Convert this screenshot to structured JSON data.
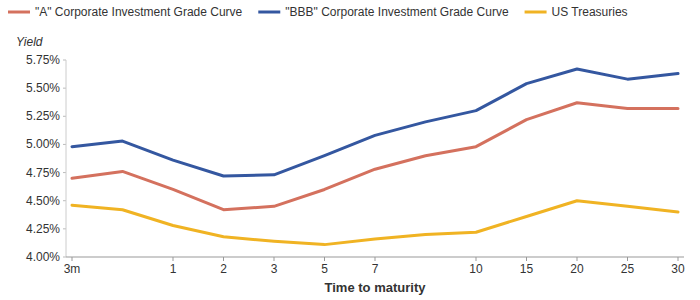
{
  "chart_data": {
    "type": "line",
    "x_label": "Time to maturity",
    "y_label": "Yield",
    "categories": [
      "3m",
      null,
      "1",
      "2",
      "3",
      "5",
      "7",
      null,
      "10",
      "15",
      "20",
      "25",
      "30"
    ],
    "series": [
      {
        "name": "\"A\" Corporate Investment Grade Curve",
        "color": "#d4715e",
        "values": [
          4.7,
          4.76,
          4.6,
          4.42,
          4.45,
          4.6,
          4.78,
          4.9,
          4.98,
          5.22,
          5.37,
          5.32,
          5.32
        ]
      },
      {
        "name": "\"BBB\" Corporate Investment Grade Curve",
        "color": "#3457a0",
        "values": [
          4.98,
          5.03,
          4.86,
          4.72,
          4.73,
          4.9,
          5.08,
          5.2,
          5.3,
          5.54,
          5.67,
          5.58,
          5.63
        ]
      },
      {
        "name": "US Treasuries",
        "color": "#f0b323",
        "values": [
          4.46,
          4.42,
          4.28,
          4.18,
          4.14,
          4.11,
          4.16,
          4.2,
          4.22,
          4.36,
          4.5,
          4.45,
          4.4
        ]
      }
    ],
    "ylim": [
      4,
      5.75
    ],
    "yticks": [
      {
        "value": 4,
        "label": "4.00%"
      },
      {
        "value": 4.25,
        "label": "4.25%"
      },
      {
        "value": 4.5,
        "label": "4.50%"
      },
      {
        "value": 4.75,
        "label": "4.75%"
      },
      {
        "value": 5,
        "label": "5.00%"
      },
      {
        "value": 5.25,
        "label": "5.25%"
      },
      {
        "value": 5.5,
        "label": "5.50%"
      },
      {
        "value": 5.75,
        "label": "5.75%"
      }
    ],
    "grid": false,
    "legend": "top"
  }
}
